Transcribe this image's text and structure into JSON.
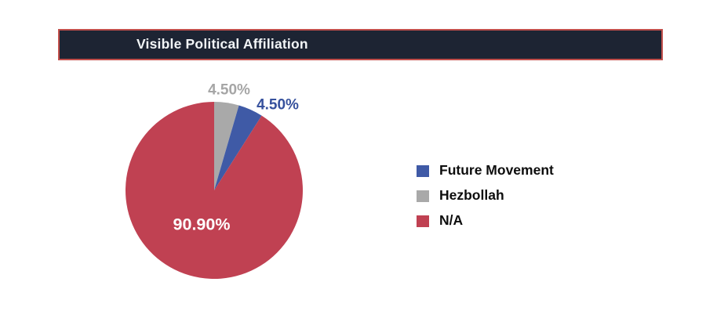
{
  "chart_data": {
    "type": "pie",
    "title": "Visible Political Affiliation",
    "slices": [
      {
        "label": "Hezbollah",
        "value": 4.5,
        "display": "4.50%"
      },
      {
        "label": "Future Movement",
        "value": 4.5,
        "display": "4.50%"
      },
      {
        "label": "N/A",
        "value": 90.9,
        "display": "90.90%"
      }
    ],
    "start_angle_deg": 0,
    "direction": "clockwise",
    "palette": {
      "Future Movement": "#3F5AA6",
      "Hezbollah": "#A9A9A9",
      "N/A": "#C04152"
    },
    "label_colors": {
      "Future Movement": "#36519D",
      "Hezbollah": "#A6A6A6",
      "N/A": "#FFFFFF"
    },
    "legend": [
      "Future Movement",
      "Hezbollah",
      "N/A"
    ],
    "legend_position": "right",
    "title_bar": {
      "background": "#1D2433",
      "border_color": "#C14F4B",
      "text_color": "#F2F5F7"
    }
  }
}
